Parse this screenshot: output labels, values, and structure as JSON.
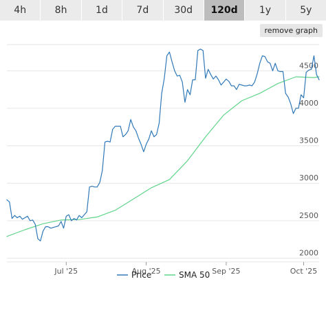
{
  "range_tabs": [
    "4h",
    "8h",
    "1d",
    "7d",
    "30d",
    "120d",
    "1y",
    "5y"
  ],
  "active_tab": "120d",
  "remove_graph_label": "remove graph",
  "colors": {
    "price": "#2f78b8",
    "sma": "#5fd48a",
    "grid": "#e6e6e6",
    "active_tab": "#bdbdbd"
  },
  "chart_data": {
    "type": "line",
    "title": "",
    "xlabel": "",
    "ylabel": "",
    "ylim": [
      1950,
      4850
    ],
    "xlim": [
      "2025-06-08",
      "2025-10-07"
    ],
    "x_ticks": [
      {
        "date": "2025-07-01",
        "label": "Jul '25"
      },
      {
        "date": "2025-08-01",
        "label": "Aug '25"
      },
      {
        "date": "2025-09-01",
        "label": "Sep '25"
      },
      {
        "date": "2025-10-01",
        "label": "Oct '25"
      }
    ],
    "y_ticks": [
      2000,
      2500,
      3000,
      3500,
      4000,
      4500
    ],
    "grid": true,
    "legend_position": "bottom-center",
    "series": [
      {
        "name": "Price",
        "color": "#2f78b8",
        "x": [
          "2025-06-08",
          "2025-06-09",
          "2025-06-10",
          "2025-06-11",
          "2025-06-12",
          "2025-06-13",
          "2025-06-14",
          "2025-06-15",
          "2025-06-16",
          "2025-06-17",
          "2025-06-18",
          "2025-06-19",
          "2025-06-20",
          "2025-06-21",
          "2025-06-22",
          "2025-06-23",
          "2025-06-24",
          "2025-06-25",
          "2025-06-26",
          "2025-06-27",
          "2025-06-28",
          "2025-06-29",
          "2025-06-30",
          "2025-07-01",
          "2025-07-02",
          "2025-07-03",
          "2025-07-04",
          "2025-07-05",
          "2025-07-06",
          "2025-07-07",
          "2025-07-08",
          "2025-07-09",
          "2025-07-10",
          "2025-07-11",
          "2025-07-12",
          "2025-07-13",
          "2025-07-14",
          "2025-07-15",
          "2025-07-16",
          "2025-07-17",
          "2025-07-18",
          "2025-07-19",
          "2025-07-20",
          "2025-07-21",
          "2025-07-22",
          "2025-07-23",
          "2025-07-24",
          "2025-07-25",
          "2025-07-26",
          "2025-07-27",
          "2025-07-28",
          "2025-07-29",
          "2025-07-30",
          "2025-07-31",
          "2025-08-01",
          "2025-08-02",
          "2025-08-03",
          "2025-08-04",
          "2025-08-05",
          "2025-08-06",
          "2025-08-07",
          "2025-08-08",
          "2025-08-09",
          "2025-08-10",
          "2025-08-11",
          "2025-08-12",
          "2025-08-13",
          "2025-08-14",
          "2025-08-15",
          "2025-08-16",
          "2025-08-17",
          "2025-08-18",
          "2025-08-19",
          "2025-08-20",
          "2025-08-21",
          "2025-08-22",
          "2025-08-23",
          "2025-08-24",
          "2025-08-25",
          "2025-08-26",
          "2025-08-27",
          "2025-08-28",
          "2025-08-29",
          "2025-08-30",
          "2025-08-31",
          "2025-09-01",
          "2025-09-02",
          "2025-09-03",
          "2025-09-04",
          "2025-09-05",
          "2025-09-06",
          "2025-09-07",
          "2025-09-08",
          "2025-09-09",
          "2025-09-10",
          "2025-09-11",
          "2025-09-12",
          "2025-09-13",
          "2025-09-14",
          "2025-09-15",
          "2025-09-16",
          "2025-09-17",
          "2025-09-18",
          "2025-09-19",
          "2025-09-20",
          "2025-09-21",
          "2025-09-22",
          "2025-09-23",
          "2025-09-24",
          "2025-09-25",
          "2025-09-26",
          "2025-09-27",
          "2025-09-28",
          "2025-09-29",
          "2025-09-30",
          "2025-10-01",
          "2025-10-02",
          "2025-10-03",
          "2025-10-04",
          "2025-10-05",
          "2025-10-06",
          "2025-10-07"
        ],
        "values": [
          2780,
          2750,
          2530,
          2570,
          2540,
          2560,
          2520,
          2540,
          2560,
          2500,
          2510,
          2450,
          2260,
          2230,
          2360,
          2420,
          2420,
          2400,
          2410,
          2420,
          2430,
          2490,
          2400,
          2560,
          2580,
          2500,
          2530,
          2510,
          2570,
          2540,
          2580,
          2620,
          2950,
          2960,
          2950,
          2950,
          3010,
          3170,
          3550,
          3560,
          3550,
          3720,
          3760,
          3760,
          3760,
          3620,
          3650,
          3700,
          3850,
          3750,
          3700,
          3600,
          3520,
          3420,
          3520,
          3590,
          3700,
          3620,
          3650,
          3800,
          4200,
          4400,
          4700,
          4750,
          4620,
          4500,
          4430,
          4440,
          4350,
          4080,
          4250,
          4180,
          4380,
          4380,
          4770,
          4790,
          4770,
          4400,
          4520,
          4450,
          4390,
          4430,
          4380,
          4310,
          4350,
          4390,
          4360,
          4300,
          4300,
          4250,
          4320,
          4310,
          4300,
          4300,
          4310,
          4300,
          4350,
          4460,
          4600,
          4700,
          4690,
          4620,
          4600,
          4500,
          4600,
          4500,
          4490,
          4490,
          4200,
          4150,
          4060,
          3930,
          4000,
          4000,
          4180,
          4140,
          4480,
          4510,
          4520,
          4700,
          4450,
          4380
        ]
      },
      {
        "name": "SMA 50",
        "color": "#5fd48a",
        "x": [
          "2025-06-08",
          "2025-06-15",
          "2025-06-22",
          "2025-06-29",
          "2025-07-06",
          "2025-07-13",
          "2025-07-20",
          "2025-07-27",
          "2025-08-03",
          "2025-08-10",
          "2025-08-17",
          "2025-08-24",
          "2025-08-31",
          "2025-09-07",
          "2025-09-14",
          "2025-09-21",
          "2025-09-28",
          "2025-10-05",
          "2025-10-07"
        ],
        "values": [
          2290,
          2380,
          2460,
          2510,
          2515,
          2550,
          2640,
          2790,
          2940,
          3050,
          3300,
          3620,
          3910,
          4100,
          4200,
          4330,
          4420,
          4410,
          4420
        ]
      }
    ]
  }
}
